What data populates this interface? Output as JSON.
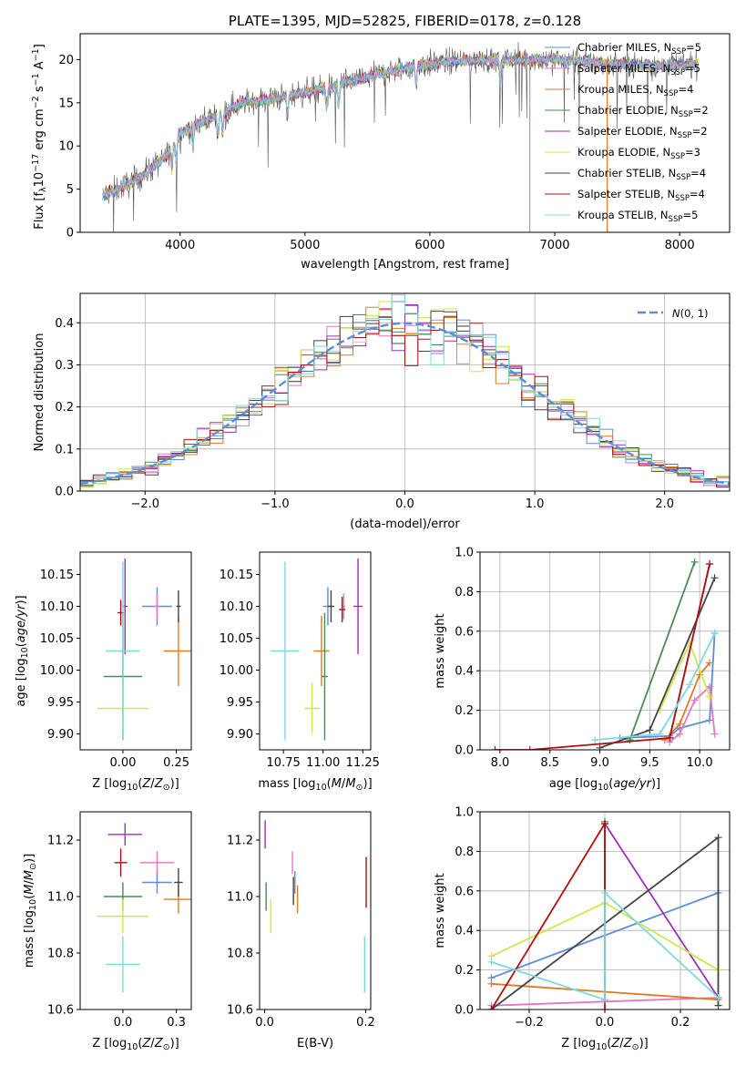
{
  "colors": {
    "Chabrier MILES": "#5b8ed6",
    "Salpeter MILES": "#e377c2",
    "Kroupa MILES": "#e07b1f",
    "Chabrier ELODIE": "#4a8a55",
    "Salpeter ELODIE": "#a02fb8",
    "Kroupa ELODIE": "#cce84a",
    "Chabrier STELIB": "#444444",
    "Salpeter STELIB": "#b01010",
    "Kroupa STELIB": "#7ed8e0",
    "normal": "#5b8ed6"
  },
  "chart_data": [
    {
      "type": "line",
      "title": "PLATE=1395, MJD=52825, FIBERID=0178, z=0.128",
      "xlabel": "wavelength [Angstrom, rest frame]",
      "ylabel": "Flux [f$_\\lambda$10$^{-17}$ erg cm$^{-2}$ s$^{-1}$ A$^{-1}$]",
      "ylabel_parts": [
        "Flux [f",
        "λ",
        "10",
        "−17",
        " erg cm",
        "−2",
        " s",
        "−1",
        " A",
        "−1",
        "]"
      ],
      "xlim": [
        3200,
        8400
      ],
      "ylim": [
        0,
        23
      ],
      "xticks": [
        4000,
        5000,
        6000,
        7000,
        8000
      ],
      "yticks": [
        0,
        5,
        10,
        15,
        20
      ],
      "legend": "top-right",
      "series": [
        {
          "name": "Chabrier MILES",
          "base": "Chabrier MILES",
          "n": "5"
        },
        {
          "name": "Salpeter MILES",
          "base": "Salpeter MILES",
          "n": "5"
        },
        {
          "name": "Kroupa MILES",
          "base": "Kroupa MILES",
          "n": "4"
        },
        {
          "name": "Chabrier ELODIE",
          "base": "Chabrier ELODIE",
          "n": "2"
        },
        {
          "name": "Salpeter ELODIE",
          "base": "Salpeter ELODIE",
          "n": "2"
        },
        {
          "name": "Kroupa ELODIE",
          "base": "Kroupa ELODIE",
          "n": "3"
        },
        {
          "name": "Chabrier STELIB",
          "base": "Chabrier STELIB",
          "n": "4"
        },
        {
          "name": "Salpeter STELIB",
          "base": "Salpeter STELIB",
          "n": "4"
        },
        {
          "name": "Kroupa STELIB",
          "base": "Kroupa STELIB",
          "n": "5"
        }
      ],
      "continuum": [
        [
          3380,
          4.3
        ],
        [
          3500,
          5.0
        ],
        [
          3700,
          6.5
        ],
        [
          3900,
          9.0
        ],
        [
          4000,
          11.5
        ],
        [
          4200,
          13.0
        ],
        [
          4500,
          15.0
        ],
        [
          4800,
          15.6
        ],
        [
          5000,
          16.2
        ],
        [
          5200,
          16.8
        ],
        [
          5500,
          18.0
        ],
        [
          5900,
          19.3
        ],
        [
          6200,
          19.8
        ],
        [
          6600,
          20.0
        ],
        [
          7000,
          20.0
        ],
        [
          7400,
          19.6
        ],
        [
          7800,
          19.3
        ],
        [
          8150,
          19.5
        ]
      ]
    },
    {
      "type": "line",
      "xlabel": "(data-model)/error",
      "ylabel": "Normed distribution",
      "xlim": [
        -2.5,
        2.5
      ],
      "ylim": [
        0,
        0.47
      ],
      "xticks": [
        -2,
        -1,
        0,
        1,
        2
      ],
      "yticks": [
        0.0,
        0.1,
        0.2,
        0.3,
        0.4
      ],
      "grid": true,
      "legend": "top-right",
      "legend_label": "N(0,1)",
      "bin_width": 0.1
    },
    {
      "type": "scatter",
      "xlabel": "Z [log10(Z/Z⊙)]",
      "ylabel": "age  [log10(age/yr)]",
      "xlim": [
        -0.2,
        0.32
      ],
      "ylim": [
        9.875,
        10.185
      ],
      "xticks": [
        0.0,
        0.25
      ],
      "yticks": [
        9.9,
        9.95,
        10.0,
        10.05,
        10.1,
        10.15
      ],
      "points": [
        {
          "series": "Chabrier MILES",
          "x": 0.16,
          "y": 10.1,
          "xe": 0.07,
          "ye": 0.03
        },
        {
          "series": "Salpeter MILES",
          "x": 0.16,
          "y": 10.1,
          "xe": 0.02,
          "ye": 0.02
        },
        {
          "series": "Kroupa MILES",
          "x": 0.26,
          "y": 10.03,
          "xe": 0.07,
          "ye": 0.055
        },
        {
          "series": "Chabrier ELODIE",
          "x": 0.0,
          "y": 9.99,
          "xe": 0.09,
          "ye": 0.1
        },
        {
          "series": "Salpeter ELODIE",
          "x": 0.01,
          "y": 10.1,
          "xe": 0.012,
          "ye": 0.075
        },
        {
          "series": "Kroupa ELODIE",
          "x": 0.0,
          "y": 9.94,
          "xe": 0.12,
          "ye": 0.04
        },
        {
          "series": "Chabrier STELIB",
          "x": 0.26,
          "y": 10.1,
          "xe": 0.01,
          "ye": 0.025
        },
        {
          "series": "Salpeter STELIB",
          "x": -0.01,
          "y": 10.09,
          "xe": 0.015,
          "ye": 0.02
        },
        {
          "series": "Kroupa STELIB",
          "x": 0.0,
          "y": 10.03,
          "xe": 0.08,
          "ye": 0.14
        }
      ]
    },
    {
      "type": "scatter",
      "xlabel": "mass [log10(M/M⊙)]",
      "ylabel": "",
      "xlim": [
        10.6,
        11.3
      ],
      "ylim": [
        9.875,
        10.185
      ],
      "xticks": [
        10.75,
        11.0,
        11.25
      ],
      "yticks": [
        9.9,
        9.95,
        10.0,
        10.05,
        10.1,
        10.15
      ],
      "points": [
        {
          "series": "Chabrier MILES",
          "x": 11.03,
          "y": 10.1,
          "xe": 0.03,
          "ye": 0.03
        },
        {
          "series": "Salpeter MILES",
          "x": 11.13,
          "y": 10.1,
          "xe": 0.01,
          "ye": 0.02
        },
        {
          "series": "Kroupa MILES",
          "x": 10.99,
          "y": 10.03,
          "xe": 0.05,
          "ye": 0.055
        },
        {
          "series": "Chabrier ELODIE",
          "x": 11.01,
          "y": 9.99,
          "xe": 0.02,
          "ye": 0.1
        },
        {
          "series": "Salpeter ELODIE",
          "x": 11.22,
          "y": 10.1,
          "xe": 0.03,
          "ye": 0.075
        },
        {
          "series": "Kroupa ELODIE",
          "x": 10.93,
          "y": 9.94,
          "xe": 0.05,
          "ye": 0.04
        },
        {
          "series": "Chabrier STELIB",
          "x": 11.05,
          "y": 10.1,
          "xe": 0.02,
          "ye": 0.025
        },
        {
          "series": "Salpeter STELIB",
          "x": 11.12,
          "y": 10.095,
          "xe": 0.02,
          "ye": 0.02
        },
        {
          "series": "Kroupa STELIB",
          "x": 10.76,
          "y": 10.03,
          "xe": 0.09,
          "ye": 0.14
        }
      ]
    },
    {
      "type": "line",
      "xlabel": "age  [log10(age/yr)]",
      "ylabel": "mass weight",
      "xlim": [
        7.8,
        10.3
      ],
      "ylim": [
        0,
        1.0
      ],
      "xticks": [
        8.0,
        8.5,
        9.0,
        9.5,
        10.0
      ],
      "yticks": [
        0.0,
        0.2,
        0.4,
        0.6,
        0.8,
        1.0
      ],
      "grid": true,
      "series": [
        {
          "name": "Chabrier MILES",
          "x": [
            9.2,
            9.7,
            9.8,
            10.1,
            10.15
          ],
          "y": [
            0.06,
            0.07,
            0.11,
            0.15,
            0.59
          ]
        },
        {
          "name": "Salpeter MILES",
          "x": [
            9.7,
            9.8,
            9.95,
            10.1,
            10.15
          ],
          "y": [
            0.04,
            0.08,
            0.25,
            0.32,
            0.08
          ]
        },
        {
          "name": "Kroupa MILES",
          "x": [
            9.65,
            9.8,
            10.0,
            10.1
          ],
          "y": [
            0.05,
            0.13,
            0.38,
            0.44
          ]
        },
        {
          "name": "Chabrier ELODIE",
          "x": [
            9.3,
            9.95
          ],
          "y": [
            0.05,
            0.95
          ]
        },
        {
          "name": "Salpeter ELODIE",
          "x": [
            9.7,
            10.1
          ],
          "y": [
            0.06,
            0.94
          ]
        },
        {
          "name": "Kroupa ELODIE",
          "x": [
            9.6,
            9.9,
            10.1
          ],
          "y": [
            0.2,
            0.54,
            0.27
          ]
        },
        {
          "name": "Chabrier STELIB",
          "x": [
            9.0,
            9.5,
            10.15
          ],
          "y": [
            0.01,
            0.1,
            0.87
          ]
        },
        {
          "name": "Salpeter STELIB",
          "x": [
            7.95,
            8.3,
            9.7,
            10.1
          ],
          "y": [
            0.0,
            0.0,
            0.06,
            0.94
          ]
        },
        {
          "name": "Kroupa STELIB",
          "x": [
            8.95,
            9.6,
            9.9,
            10.15
          ],
          "y": [
            0.05,
            0.08,
            0.33,
            0.59
          ]
        }
      ]
    },
    {
      "type": "scatter",
      "xlabel": "Z [log10(Z/Z⊙)]",
      "ylabel": "mass [log10(M/M⊙)]",
      "xlim": [
        -0.2,
        0.32
      ],
      "ylim": [
        10.6,
        11.3
      ],
      "xticks": [
        0.0,
        0.25
      ],
      "yticks": [
        10.6,
        10.8,
        11.0,
        11.2
      ],
      "points": [
        {
          "series": "Chabrier MILES",
          "x": 0.16,
          "y": 11.05,
          "xe": 0.07,
          "ye": 0.04
        },
        {
          "series": "Salpeter MILES",
          "x": 0.16,
          "y": 11.12,
          "xe": 0.08,
          "ye": 0.04
        },
        {
          "series": "Kroupa MILES",
          "x": 0.26,
          "y": 10.99,
          "xe": 0.07,
          "ye": 0.05
        },
        {
          "series": "Chabrier ELODIE",
          "x": 0.0,
          "y": 11.0,
          "xe": 0.09,
          "ye": 0.05
        },
        {
          "series": "Salpeter ELODIE",
          "x": 0.01,
          "y": 11.22,
          "xe": 0.08,
          "ye": 0.04
        },
        {
          "series": "Kroupa ELODIE",
          "x": 0.0,
          "y": 10.93,
          "xe": 0.12,
          "ye": 0.06
        },
        {
          "series": "Chabrier STELIB",
          "x": 0.26,
          "y": 11.05,
          "xe": 0.02,
          "ye": 0.05
        },
        {
          "series": "Salpeter STELIB",
          "x": -0.01,
          "y": 11.12,
          "xe": 0.03,
          "ye": 0.05
        },
        {
          "series": "Kroupa STELIB",
          "x": 0.0,
          "y": 10.76,
          "xe": 0.08,
          "ye": 0.1
        }
      ]
    },
    {
      "type": "scatter",
      "xlabel": "E(B-V)",
      "ylabel": "",
      "xlim": [
        -0.01,
        0.21
      ],
      "ylim": [
        10.6,
        11.3
      ],
      "xticks": [
        0.0,
        0.2
      ],
      "yticks": [
        10.6,
        10.8,
        11.0,
        11.2
      ],
      "points": [
        {
          "series": "Chabrier MILES",
          "x": 0.06,
          "y": 11.05,
          "xe": 0,
          "ye": 0.04
        },
        {
          "series": "Salpeter MILES",
          "x": 0.055,
          "y": 11.12,
          "xe": 0,
          "ye": 0.04
        },
        {
          "series": "Kroupa MILES",
          "x": 0.065,
          "y": 10.99,
          "xe": 0,
          "ye": 0.05
        },
        {
          "series": "Chabrier ELODIE",
          "x": 0.003,
          "y": 11.0,
          "xe": 0,
          "ye": 0.05
        },
        {
          "series": "Salpeter ELODIE",
          "x": 0.001,
          "y": 11.22,
          "xe": 0,
          "ye": 0.05
        },
        {
          "series": "Kroupa ELODIE",
          "x": 0.012,
          "y": 10.93,
          "xe": 0,
          "ye": 0.06
        },
        {
          "series": "Chabrier STELIB",
          "x": 0.057,
          "y": 11.02,
          "xe": 0,
          "ye": 0.05
        },
        {
          "series": "Salpeter STELIB",
          "x": 0.201,
          "y": 11.05,
          "xe": 0,
          "ye": 0.09
        },
        {
          "series": "Kroupa STELIB",
          "x": 0.198,
          "y": 10.76,
          "xe": 0,
          "ye": 0.1
        }
      ]
    },
    {
      "type": "line",
      "xlabel": "Z [log10(Z/Z⊙)]",
      "ylabel": "mass weight",
      "xlim": [
        -0.33,
        0.33
      ],
      "ylim": [
        0,
        1.0
      ],
      "xticks": [
        -0.2,
        0.0,
        0.2
      ],
      "yticks": [
        0.0,
        0.2,
        0.4,
        0.6,
        0.8,
        1.0
      ],
      "grid": true,
      "series": [
        {
          "name": "Chabrier MILES",
          "x": [
            -0.3,
            0.3
          ],
          "y": [
            0.16,
            0.59
          ]
        },
        {
          "name": "Salpeter MILES",
          "x": [
            -0.3,
            0.0,
            0.3
          ],
          "y": [
            0.02,
            0.04,
            0.06
          ]
        },
        {
          "name": "Kroupa MILES",
          "x": [
            -0.3,
            0.3
          ],
          "y": [
            0.13,
            0.05
          ]
        },
        {
          "name": "Chabrier ELODIE",
          "x": [
            0.0,
            0.0
          ],
          "y": [
            0.05,
            0.95
          ]
        },
        {
          "name": "Salpeter ELODIE",
          "x": [
            0.0,
            0.3
          ],
          "y": [
            0.94,
            0.06
          ]
        },
        {
          "name": "Kroupa ELODIE",
          "x": [
            -0.3,
            0.0,
            0.3
          ],
          "y": [
            0.27,
            0.54,
            0.2
          ]
        },
        {
          "name": "Chabrier STELIB",
          "x": [
            -0.3,
            0.3,
            0.3
          ],
          "y": [
            0.0,
            0.87,
            0.02
          ]
        },
        {
          "name": "Salpeter STELIB",
          "x": [
            -0.3,
            0.0,
            0.0
          ],
          "y": [
            0.0,
            0.94,
            0.0
          ]
        },
        {
          "name": "Kroupa STELIB",
          "x": [
            -0.3,
            0.0,
            0.0,
            0.3
          ],
          "y": [
            0.24,
            0.05,
            0.59,
            0.06
          ]
        }
      ]
    }
  ]
}
